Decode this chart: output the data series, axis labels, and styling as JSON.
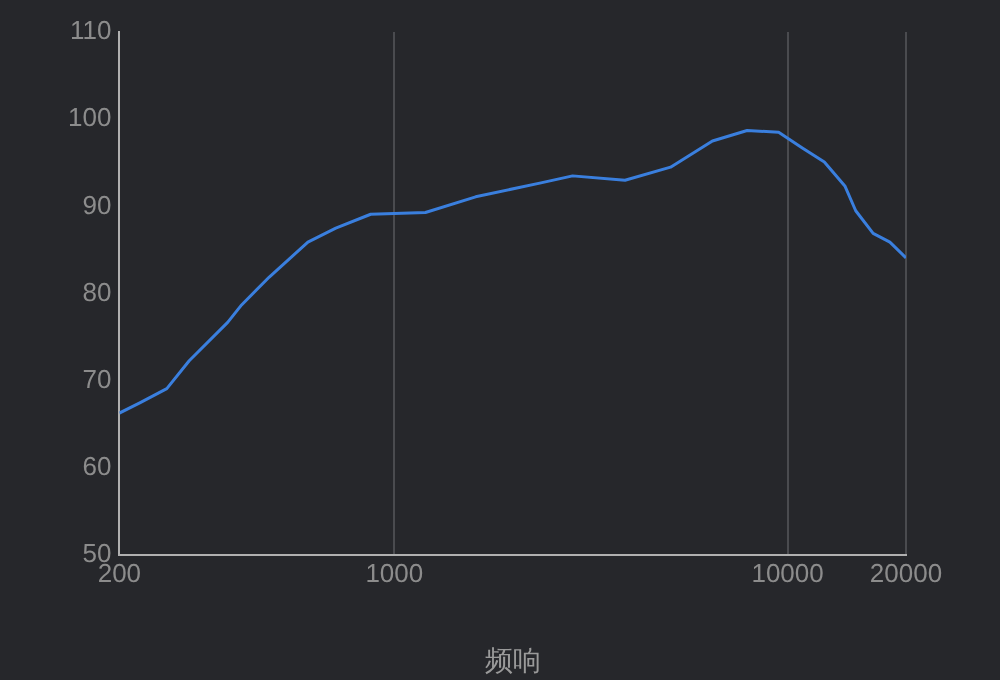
{
  "chart_data": {
    "type": "line",
    "xlabel": "频响",
    "log": "x",
    "grid": "x",
    "marker": "none",
    "xlim": [
      200,
      20000
    ],
    "xticks": [
      200,
      1000,
      10000,
      20000
    ],
    "ylim": [
      50,
      110
    ],
    "yticks": [
      50,
      60,
      70,
      80,
      90,
      100,
      110
    ],
    "x": [
      200,
      226,
      264,
      301,
      377,
      409,
      481,
      603,
      710,
      871,
      1200,
      1610,
      2360,
      2840,
      3860,
      5040,
      6440,
      7890,
      9490,
      10900,
      12400,
      14000,
      14900,
      16500,
      18200,
      20000
    ],
    "series": [
      {
        "color": "#3a7fde",
        "values": [
          66.3,
          67.5,
          69.1,
          72.3,
          76.7,
          78.7,
          81.9,
          85.9,
          87.5,
          89.1,
          89.3,
          91.1,
          92.7,
          93.5,
          93,
          94.5,
          97.5,
          98.7,
          98.5,
          96.7,
          95.1,
          92.3,
          89.5,
          86.9,
          85.9,
          84.1
        ]
      }
    ]
  }
}
